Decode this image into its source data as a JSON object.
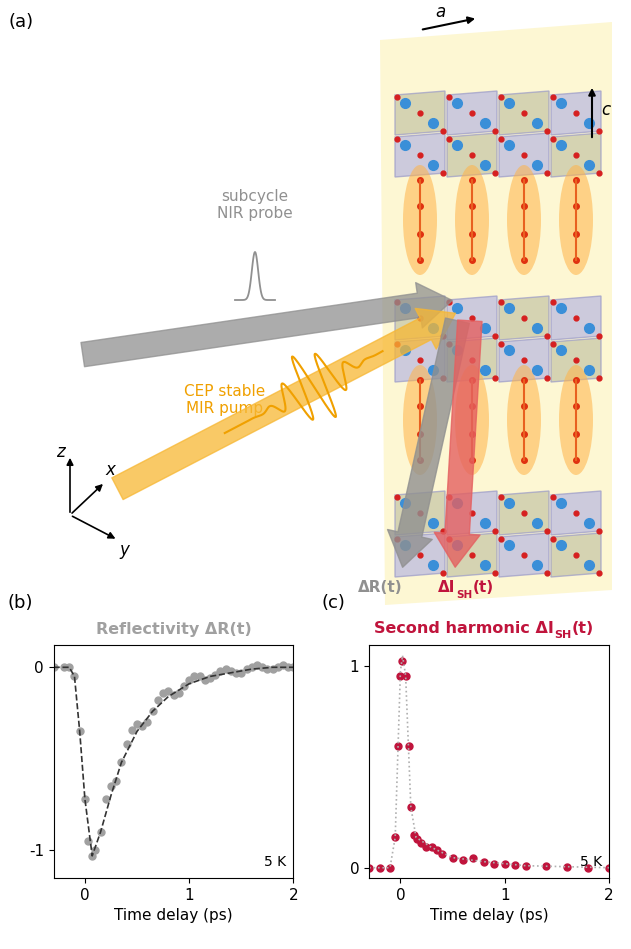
{
  "diagram": {
    "panel_label": "(a)",
    "axis_a": "a",
    "axis_c": "c",
    "probe_label": "subcycle\nNIR probe",
    "pump_label": "CEP stable\nMIR pump",
    "coords": {
      "z": "z",
      "x": "x",
      "y": "y"
    },
    "reflect_label": "ΔR(t)",
    "sh_label": {
      "main": "ΔI",
      "sub": "SH",
      "end": "(t)"
    }
  },
  "chart_data": [
    {
      "type": "line",
      "panel_label": "(b)",
      "title": "Reflectivity ΔR(t)",
      "title_color": "#a0a0a0",
      "x_label": "Time delay (ps)",
      "annotation": "5 K",
      "xlim": [
        -0.3,
        2.0
      ],
      "ylim": [
        -1.15,
        0.12
      ],
      "xticks": [
        0,
        1,
        2
      ],
      "yticks": [
        0,
        -1
      ],
      "series": [
        {
          "color": "#a0a0a0",
          "marker": "o",
          "line_style": "none",
          "x": [
            -0.3,
            -0.2,
            -0.15,
            -0.1,
            -0.05,
            0.0,
            0.03,
            0.07,
            0.1,
            0.15,
            0.2,
            0.25,
            0.3,
            0.35,
            0.4,
            0.45,
            0.5,
            0.55,
            0.6,
            0.65,
            0.7,
            0.75,
            0.8,
            0.85,
            0.9,
            0.95,
            1.0,
            1.05,
            1.1,
            1.15,
            1.2,
            1.25,
            1.3,
            1.35,
            1.4,
            1.45,
            1.5,
            1.55,
            1.6,
            1.65,
            1.7,
            1.75,
            1.8,
            1.85,
            1.9,
            1.95,
            2.0
          ],
          "values": [
            0,
            0,
            0,
            -0.05,
            -0.35,
            -0.72,
            -0.95,
            -1.03,
            -1.0,
            -0.9,
            -0.72,
            -0.65,
            -0.62,
            -0.52,
            -0.42,
            -0.34,
            -0.31,
            -0.32,
            -0.3,
            -0.24,
            -0.18,
            -0.14,
            -0.13,
            -0.15,
            -0.14,
            -0.1,
            -0.07,
            -0.05,
            -0.05,
            -0.07,
            -0.06,
            -0.04,
            -0.02,
            -0.01,
            -0.02,
            -0.03,
            -0.03,
            -0.01,
            0.0,
            0.01,
            0.0,
            -0.01,
            -0.01,
            0.0,
            0.01,
            0.0,
            0.0
          ]
        },
        {
          "color": "#333333",
          "line_style": "dashed",
          "x": [
            -0.3,
            -0.15,
            -0.1,
            -0.05,
            0.0,
            0.07,
            0.15,
            0.25,
            0.35,
            0.5,
            0.65,
            0.8,
            1.0,
            1.2,
            1.4,
            1.6,
            1.8,
            2.0
          ],
          "values": [
            0,
            0,
            -0.05,
            -0.35,
            -0.72,
            -1.03,
            -0.9,
            -0.7,
            -0.52,
            -0.35,
            -0.24,
            -0.16,
            -0.09,
            -0.05,
            -0.03,
            -0.01,
            0,
            0
          ]
        }
      ]
    },
    {
      "type": "line",
      "panel_label": "(c)",
      "title": {
        "main": "Second harmonic ΔI",
        "sub": "SH",
        "end": "(t)"
      },
      "title_color": "#c0143c",
      "x_label": "Time delay (ps)",
      "annotation": "5 K",
      "xlim": [
        -0.3,
        2.0
      ],
      "ylim": [
        -0.05,
        1.1
      ],
      "xticks": [
        0,
        1,
        2
      ],
      "yticks": [
        0,
        1
      ],
      "series": [
        {
          "color": "#c0143c",
          "marker": "o",
          "line_style": "none",
          "x": [
            -0.3,
            -0.2,
            -0.1,
            -0.05,
            -0.02,
            0.0,
            0.02,
            0.05,
            0.08,
            0.1,
            0.13,
            0.16,
            0.2,
            0.25,
            0.3,
            0.35,
            0.4,
            0.5,
            0.6,
            0.7,
            0.8,
            0.9,
            1.0,
            1.1,
            1.2,
            1.4,
            1.6,
            1.8,
            2.0
          ],
          "values": [
            0,
            0,
            0,
            0.15,
            0.6,
            0.95,
            1.02,
            0.95,
            0.6,
            0.3,
            0.16,
            0.14,
            0.12,
            0.1,
            0.1,
            0.09,
            0.07,
            0.05,
            0.04,
            0.05,
            0.03,
            0.02,
            0.02,
            0.015,
            0.01,
            0.01,
            0.005,
            0,
            0
          ]
        },
        {
          "color": "#b0b0b0",
          "line_style": "dotted",
          "x": [
            -0.3,
            -0.1,
            -0.05,
            0.0,
            0.02,
            0.05,
            0.1,
            0.15,
            0.3,
            0.5,
            0.8,
            1.2,
            1.6,
            2.0
          ],
          "values": [
            0,
            0,
            0.15,
            0.97,
            1.05,
            0.95,
            0.3,
            0.15,
            0.1,
            0.05,
            0.03,
            0.01,
            0.005,
            0
          ]
        }
      ]
    }
  ]
}
